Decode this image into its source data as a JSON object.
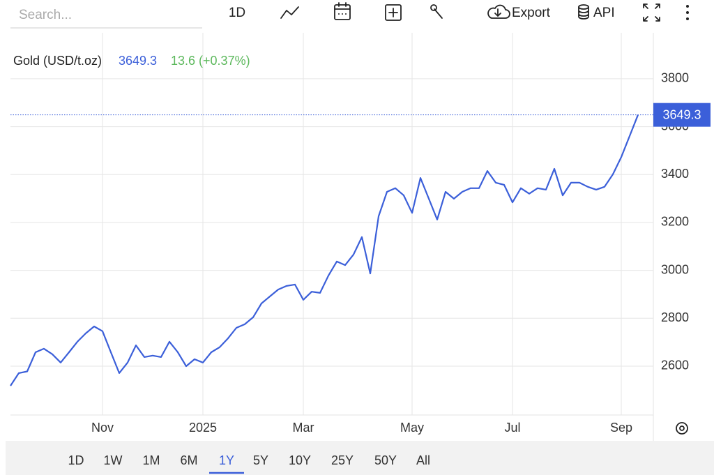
{
  "toolbar": {
    "search_placeholder": "Search...",
    "interval": "1D",
    "export": "Export",
    "api": "API"
  },
  "chart_data": {
    "type": "line",
    "title": "Gold (USD/t.oz)",
    "change_text": "13.6 (+0.37%)",
    "color": "#3b5fd9",
    "categories": [
      null,
      null,
      null,
      null,
      null,
      null,
      null,
      null,
      null,
      null,
      null,
      "Nov",
      null,
      null,
      null,
      null,
      null,
      null,
      null,
      null,
      null,
      null,
      null,
      "2025",
      null,
      null,
      null,
      null,
      null,
      null,
      null,
      null,
      null,
      null,
      null,
      "Mar",
      null,
      null,
      null,
      null,
      null,
      null,
      null,
      null,
      null,
      null,
      null,
      null,
      "May",
      null,
      null,
      null,
      null,
      null,
      null,
      null,
      null,
      null,
      null,
      null,
      "Jul",
      null,
      null,
      null,
      null,
      null,
      null,
      null,
      null,
      null,
      null,
      null,
      null,
      "Sep",
      null,
      null
    ],
    "values": [
      2518,
      2571,
      2578,
      2658,
      2673,
      2650,
      2615,
      2658,
      2702,
      2737,
      2766,
      2746,
      2658,
      2571,
      2615,
      2687,
      2638,
      2644,
      2638,
      2702,
      2658,
      2600,
      2629,
      2615,
      2658,
      2679,
      2716,
      2760,
      2775,
      2804,
      2862,
      2891,
      2920,
      2935,
      2941,
      2877,
      2911,
      2906,
      2978,
      3037,
      3022,
      3066,
      3139,
      2987,
      3226,
      3328,
      3343,
      3313,
      3240,
      3386,
      3299,
      3212,
      3328,
      3299,
      3328,
      3343,
      3343,
      3415,
      3366,
      3357,
      3284,
      3343,
      3320,
      3343,
      3337,
      3424,
      3313,
      3366,
      3366,
      3349,
      3337,
      3349,
      3401,
      3473,
      3561,
      3649.3
    ],
    "ylim": [
      2396,
      3992
    ],
    "yticks": [
      2600,
      2800,
      3000,
      3200,
      3400,
      3600,
      3800
    ],
    "grid": true
  },
  "range_buttons": [
    "1D",
    "1W",
    "1M",
    "6M",
    "1Y",
    "5Y",
    "10Y",
    "25Y",
    "50Y",
    "All"
  ],
  "selected_range_index": 4
}
